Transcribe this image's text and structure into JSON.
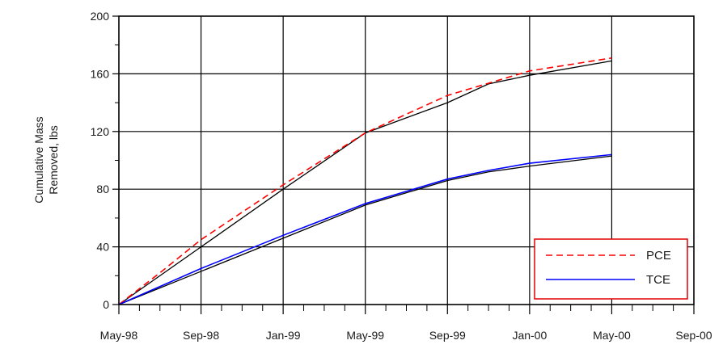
{
  "chart_data": {
    "type": "line",
    "title": "",
    "xlabel": "",
    "ylabel": [
      "Cumulative Mass",
      "Removed, lbs"
    ],
    "x_ticks": [
      "May-98",
      "Sep-98",
      "Jan-99",
      "May-99",
      "Sep-99",
      "Jan-00",
      "May-00",
      "Sep-00"
    ],
    "xlim": [
      "May-98",
      "Sep-00"
    ],
    "ylim": [
      0,
      200
    ],
    "y_ticks": [
      0,
      40,
      80,
      120,
      160,
      200
    ],
    "grid": true,
    "legend_position": "bottom-right",
    "series": [
      {
        "name": "PCE",
        "color": "#ff0000",
        "style": "dashed",
        "x": [
          "May-98",
          "Jul-98",
          "Sep-98",
          "Jan-99",
          "May-99",
          "Sep-99",
          "Jan-00",
          "May-00"
        ],
        "y": [
          0,
          22,
          45,
          83,
          119,
          145,
          162,
          171
        ]
      },
      {
        "name": "TCE",
        "color": "#0000ff",
        "style": "solid",
        "x": [
          "May-98",
          "Sep-98",
          "Jan-99",
          "May-99",
          "Sep-99",
          "Nov-99",
          "Jan-00",
          "May-00"
        ],
        "y": [
          0,
          25,
          48,
          70,
          87,
          93,
          98,
          104
        ]
      }
    ],
    "fit_lines": [
      {
        "color": "#000000",
        "x": [
          "May-98",
          "Sep-98",
          "Jan-99",
          "May-99",
          "Sep-99",
          "Nov-99",
          "Jan-00",
          "May-00"
        ],
        "y": [
          0,
          40,
          80,
          119,
          140,
          153,
          159,
          169
        ]
      },
      {
        "color": "#000000",
        "x": [
          "May-98",
          "Sep-98",
          "Jan-99",
          "May-99",
          "Sep-99",
          "Nov-99",
          "Jan-00",
          "May-00"
        ],
        "y": [
          0,
          23,
          46,
          69,
          86,
          92,
          96,
          103
        ]
      }
    ]
  }
}
